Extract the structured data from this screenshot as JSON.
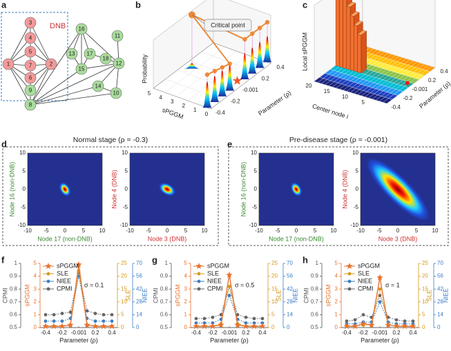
{
  "panel_labels": [
    "a",
    "b",
    "c",
    "d",
    "e",
    "f",
    "g",
    "h"
  ],
  "network": {
    "box_label": "DNB",
    "nodes": [
      {
        "label": "1",
        "color": "#f29a9a"
      },
      {
        "label": "2",
        "color": "#f29a9a"
      },
      {
        "label": "3",
        "color": "#f29a9a"
      },
      {
        "label": "4",
        "color": "#f29a9a"
      },
      {
        "label": "5",
        "color": "#f29a9a"
      },
      {
        "label": "6",
        "color": "#f29a9a"
      },
      {
        "label": "7",
        "color": "#f29a9a"
      },
      {
        "label": "8",
        "color": "#a9dc9c"
      },
      {
        "label": "9",
        "color": "#a9dc9c"
      },
      {
        "label": "10",
        "color": "#a9dc9c"
      },
      {
        "label": "11",
        "color": "#a9dc9c"
      },
      {
        "label": "12",
        "color": "#a9dc9c"
      },
      {
        "label": "13",
        "color": "#a9dc9c"
      },
      {
        "label": "14",
        "color": "#a9dc9c"
      },
      {
        "label": "15",
        "color": "#a9dc9c"
      },
      {
        "label": "16",
        "color": "#a9dc9c"
      },
      {
        "label": "17",
        "color": "#a9dc9c"
      },
      {
        "label": "18",
        "color": "#a9dc9c"
      }
    ]
  },
  "panel_b": {
    "z_label": "Probability",
    "x_label": "sPGGM",
    "y_label": "Parameter (ρ)",
    "x_ticks": [
      "5",
      "4",
      "3",
      "2",
      "1",
      "0"
    ],
    "y_ticks": [
      "0.4",
      "0.2",
      "-0.001",
      "-0.2",
      "-0.4"
    ],
    "annotation": "Critical point"
  },
  "panel_c": {
    "z_label": "Local sPGGM",
    "x_label": "Center node i",
    "y_label": "Parameter (ρ)",
    "x_ticks": [
      "5",
      "10",
      "15",
      "20"
    ],
    "y_ticks": [
      "0.4",
      "0.2",
      "-0.001",
      "-0.2",
      "-0.4"
    ]
  },
  "panel_d": {
    "title": "Normal stage (ρ = -0.3)",
    "left": {
      "y_label": "Node 16 (non-DNB)",
      "x_label": "Node 17 (non-DNB)"
    },
    "right": {
      "y_label": "Node 4 (DNB)",
      "x_label": "Node 3 (DNB)"
    }
  },
  "panel_e": {
    "title": "Pre-disease stage (ρ = -0.001)",
    "left": {
      "y_label": "Node 16 (non-DNB)",
      "x_label": "Node 17 (non-DNB)"
    },
    "right": {
      "y_label": "Node 4 (DNB)",
      "x_label": "Node 3 (DNB)"
    }
  },
  "heat_ticks": [
    "-10",
    "-5",
    "0",
    "5",
    "10"
  ],
  "chart_data": [
    {
      "type": "line",
      "annotation": "σ = 0.1",
      "x_label": "Parameter (ρ)",
      "categories": [
        "-0.4",
        null,
        "-0.2",
        null,
        "-0.001",
        null,
        "0.2",
        null,
        "0.4"
      ],
      "axes": [
        {
          "name": "CPMI",
          "color": "#555555",
          "lim": [
            0.5,
            1
          ],
          "ticks": [
            0.5,
            0.6,
            0.7,
            0.8,
            0.9,
            1
          ]
        },
        {
          "name": "sPGGM",
          "color": "#e8722c",
          "lim": [
            0,
            5
          ],
          "ticks": [
            0,
            1,
            2,
            3,
            4,
            5
          ]
        },
        {
          "name": "SLE",
          "color": "#d49a1a",
          "lim": [
            0,
            25
          ],
          "ticks": [
            0,
            5,
            10,
            15,
            20,
            25
          ]
        },
        {
          "name": "NIEE",
          "color": "#3b7dc4",
          "lim": [
            0,
            70
          ],
          "ticks": [
            0,
            14,
            28,
            42,
            56,
            70
          ]
        }
      ],
      "series": [
        {
          "name": "sPGGM",
          "color": "#e8722c",
          "axis": 1,
          "values": [
            0.1,
            0.1,
            0.1,
            0.2,
            4.9,
            0.2,
            0.1,
            0.1,
            0.1
          ]
        },
        {
          "name": "SLE",
          "color": "#d49a1a",
          "axis": 2,
          "values": [
            0.5,
            0.5,
            0.5,
            1,
            22,
            1,
            0.5,
            0.5,
            0.5
          ]
        },
        {
          "name": "NIEE",
          "color": "#3b7dc4",
          "axis": 3,
          "values": [
            7,
            7,
            7,
            10,
            56,
            10,
            7,
            7,
            7
          ]
        },
        {
          "name": "CPMI",
          "color": "#666666",
          "axis": 0,
          "values": [
            0.6,
            0.6,
            0.61,
            0.62,
            0.93,
            0.63,
            0.61,
            0.6,
            0.6
          ]
        }
      ]
    },
    {
      "type": "line",
      "annotation": "σ = 0.5",
      "x_label": "Parameter (ρ)",
      "categories": [
        "-0.4",
        null,
        "-0.2",
        null,
        "-0.001",
        null,
        "0.2",
        null,
        "0.4"
      ],
      "axes": [
        {
          "name": "CPMI",
          "color": "#555555",
          "lim": [
            0.5,
            1
          ],
          "ticks": [
            0.5,
            0.6,
            0.7,
            0.8,
            0.9,
            1
          ]
        },
        {
          "name": "sPGGM",
          "color": "#e8722c",
          "lim": [
            0,
            5
          ],
          "ticks": [
            0,
            1,
            2,
            3,
            4,
            5
          ]
        },
        {
          "name": "SLE",
          "color": "#d49a1a",
          "lim": [
            0,
            25
          ],
          "ticks": [
            0,
            5,
            10,
            15,
            20,
            25
          ]
        },
        {
          "name": "NIEE",
          "color": "#3b7dc4",
          "lim": [
            0,
            70
          ],
          "ticks": [
            0,
            14,
            28,
            42,
            56,
            70
          ]
        }
      ],
      "series": [
        {
          "name": "sPGGM",
          "color": "#e8722c",
          "axis": 1,
          "values": [
            0.1,
            0.1,
            0.1,
            0.2,
            4.1,
            0.2,
            0.1,
            0.1,
            0.1
          ]
        },
        {
          "name": "SLE",
          "color": "#d49a1a",
          "axis": 2,
          "values": [
            0.5,
            0.5,
            0.5,
            1.5,
            16,
            1.5,
            0.5,
            0.5,
            0.5
          ]
        },
        {
          "name": "NIEE",
          "color": "#3b7dc4",
          "axis": 3,
          "values": [
            5,
            5,
            5,
            9,
            35,
            9,
            5,
            5,
            5
          ]
        },
        {
          "name": "CPMI",
          "color": "#666666",
          "axis": 0,
          "values": [
            0.57,
            0.57,
            0.58,
            0.6,
            0.82,
            0.6,
            0.58,
            0.57,
            0.57
          ]
        }
      ]
    },
    {
      "type": "line",
      "annotation": "σ = 1",
      "x_label": "Parameter (ρ)",
      "categories": [
        "-0.4",
        null,
        "-0.2",
        null,
        "-0.001",
        null,
        "0.2",
        null,
        "0.4"
      ],
      "axes": [
        {
          "name": "CPMI",
          "color": "#555555",
          "lim": [
            0.5,
            1
          ],
          "ticks": [
            0.5,
            0.6,
            0.7,
            0.8,
            0.9,
            1
          ]
        },
        {
          "name": "sPGGM",
          "color": "#e8722c",
          "lim": [
            0,
            5
          ],
          "ticks": [
            0,
            1,
            2,
            3,
            4,
            5
          ]
        },
        {
          "name": "SLE",
          "color": "#d49a1a",
          "lim": [
            0,
            25
          ],
          "ticks": [
            0,
            5,
            10,
            15,
            20,
            25
          ]
        },
        {
          "name": "NIEE",
          "color": "#3b7dc4",
          "lim": [
            0,
            70
          ],
          "ticks": [
            0,
            14,
            28,
            42,
            56,
            70
          ]
        }
      ],
      "series": [
        {
          "name": "sPGGM",
          "color": "#e8722c",
          "axis": 1,
          "values": [
            0.1,
            0.1,
            0.3,
            0.2,
            3.9,
            0.2,
            0.1,
            0.1,
            0.1
          ]
        },
        {
          "name": "SLE",
          "color": "#d49a1a",
          "axis": 2,
          "values": [
            0.5,
            0.5,
            1,
            1,
            15,
            1,
            0.5,
            0.5,
            0.5
          ]
        },
        {
          "name": "NIEE",
          "color": "#3b7dc4",
          "axis": 3,
          "values": [
            4,
            4,
            6,
            6,
            28,
            6,
            4,
            4,
            4
          ]
        },
        {
          "name": "CPMI",
          "color": "#666666",
          "axis": 0,
          "values": [
            0.55,
            0.56,
            0.6,
            0.58,
            0.75,
            0.58,
            0.56,
            0.55,
            0.55
          ]
        }
      ]
    }
  ]
}
